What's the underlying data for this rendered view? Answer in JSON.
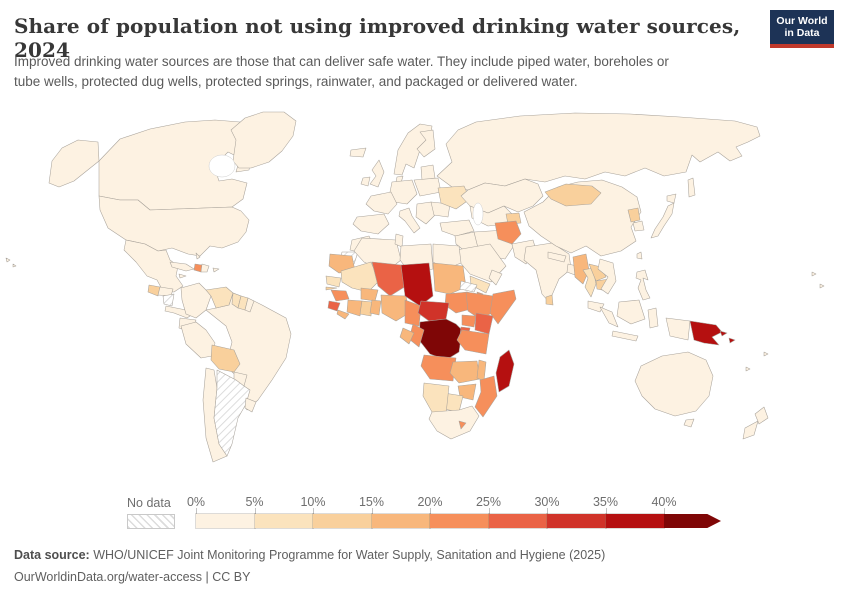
{
  "header": {
    "title": "Share of population not using improved drinking water sources, 2024",
    "subtitle_line1": "Improved drinking water sources are those that can deliver safe water. They include piped water, boreholes or",
    "subtitle_line2": "tube wells, protected dug wells, protected springs, rainwater, and packaged or delivered water.",
    "logo": {
      "line1": "Our World",
      "line2": "in Data",
      "bg_color": "#1d3356",
      "accent_color": "#c0392b"
    }
  },
  "chart_data": {
    "type": "choropleth",
    "title": "Share of population not using improved drinking water sources",
    "year": "2024",
    "unit": "% of population",
    "legend": {
      "no_data_label": "No data",
      "bin_labels": [
        "0%",
        "5%",
        "10%",
        "15%",
        "20%",
        "25%",
        "30%",
        "35%",
        "40%"
      ],
      "bin_ranges": [
        "0-5%",
        "5-10%",
        "10-15%",
        "15-20%",
        "20-25%",
        "25-30%",
        "30-35%",
        "35-40%",
        "40%+"
      ],
      "bin_colors": [
        "#fdf2e2",
        "#fbe3bd",
        "#f9d09c",
        "#f8b77c",
        "#f68f5b",
        "#ea6346",
        "#d03329",
        "#b51010",
        "#7f0606"
      ],
      "arrow_on_last_bin": true
    },
    "no_data_countries": [
      "Argentina",
      "Nicaragua",
      "Eritrea",
      "Western Sahara"
    ],
    "countries": {
      "usa": 1,
      "canada": 1,
      "alaska": 1,
      "greenland": 1,
      "mexico": 1,
      "guatemala": 3,
      "honduras": 1,
      "nicaragua": 0,
      "costa_rica_panama": 1,
      "cuba": 1,
      "haiti": 5,
      "dominican_republic": 1,
      "jamaica": 1,
      "puerto_rico": 1,
      "bahamas": 1,
      "hawaii": 1,
      "colombia": 1,
      "venezuela": 2,
      "guyana": 2,
      "suriname": 2,
      "french_guiana": 1,
      "brazil": 1,
      "ecuador": 1,
      "peru": 1,
      "bolivia": 3,
      "paraguay": 1,
      "chile": 1,
      "argentina": 0,
      "uruguay": 1,
      "iceland": 1,
      "united_kingdom": 1,
      "ireland": 1,
      "scandinavia": 1,
      "finland": 1,
      "denmark": 1,
      "baltics": 1,
      "poland_belarus": 1,
      "central_europe": 1,
      "france": 1,
      "iberia": 1,
      "italy": 1,
      "balkans": 1,
      "romania_bulgaria": 1,
      "ukraine": 2,
      "russia": 1,
      "sakhalin": 1,
      "kazakhstan": 1,
      "uzbekistan_turkmenistan": 1,
      "tajikistan": 3,
      "turkey": 1,
      "syria_iraq": 1,
      "iran": 1,
      "saudi_arabia": 1,
      "yemen": 2,
      "oman": 1,
      "afghanistan": 5,
      "pakistan": 1,
      "india": 1,
      "nepal": 1,
      "bangladesh": 1,
      "sri_lanka": 3,
      "myanmar": 4,
      "thailand": 2,
      "laos": 3,
      "cambodia": 3,
      "vietnam": 1,
      "malaysia": 1,
      "china": 1,
      "mongolia": 3,
      "north_korea": 3,
      "south_korea": 1,
      "japan": 1,
      "taiwan": 1,
      "philippines": 1,
      "indonesia": 1,
      "papua_new_guinea": 8,
      "solomon_islands": 8,
      "australia": 1,
      "tasmania": 1,
      "new_zealand": 1,
      "pacific_islands": 1,
      "morocco": 1,
      "western_sahara": 0,
      "algeria": 1,
      "tunisia": 1,
      "libya": 1,
      "egypt": 1,
      "mauritania": 4,
      "mali": 2,
      "senegal": 2,
      "gambia": 3,
      "guinea": 5,
      "sierra_leone": 6,
      "liberia": 4,
      "ivory_coast": 4,
      "burkina_faso": 4,
      "ghana": 3,
      "togo_benin": 4,
      "niger": 6,
      "nigeria": 4,
      "chad": 8,
      "sudan": 4,
      "eritrea": 0,
      "djibouti": 5,
      "cameroon": 5,
      "central_african_republic": 7,
      "south_sudan": 5,
      "ethiopia": 5,
      "somalia": 5,
      "uganda": 5,
      "kenya": 6,
      "rwanda_burundi": 6,
      "dr_congo": 9,
      "congo": 5,
      "gabon": 4,
      "tanzania": 5,
      "angola": 5,
      "zambia": 4,
      "malawi": 4,
      "mozambique": 5,
      "zimbabwe": 4,
      "botswana": 2,
      "namibia": 2,
      "south_africa": 1,
      "lesotho": 5,
      "madagascar": 8
    }
  },
  "footer": {
    "data_source_label": "Data source:",
    "data_source_value": "WHO/UNICEF Joint Monitoring Programme for Water Supply, Sanitation and Hygiene (2025)",
    "link": "OurWorldinData.org/water-access",
    "license": "CC BY"
  }
}
